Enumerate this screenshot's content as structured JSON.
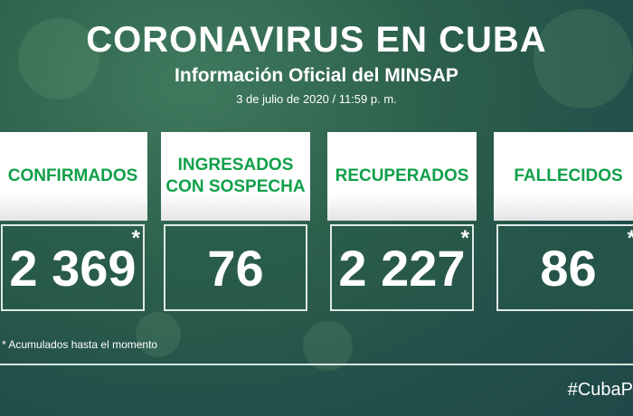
{
  "header": {
    "title": "CORONAVIRUS EN CUBA",
    "subtitle": "Información Oficial del MINSAP",
    "date": "3 de julio de 2020 / 11:59 p. m."
  },
  "cards": [
    {
      "label": "CONFIRMADOS",
      "value": "2 369",
      "asterisk": "*"
    },
    {
      "label": "INGRESADOS CON SOSPECHA",
      "value": "76",
      "asterisk": ""
    },
    {
      "label": "RECUPERADOS",
      "value": "2 227",
      "asterisk": "*"
    },
    {
      "label": "FALLECIDOS",
      "value": "86",
      "asterisk": "*"
    }
  ],
  "footer": {
    "note": "* Acumulados hasta el momento",
    "hashtag": "#CubaP"
  },
  "colors": {
    "accent": "#10a04a",
    "background": "#2c5f4b"
  }
}
